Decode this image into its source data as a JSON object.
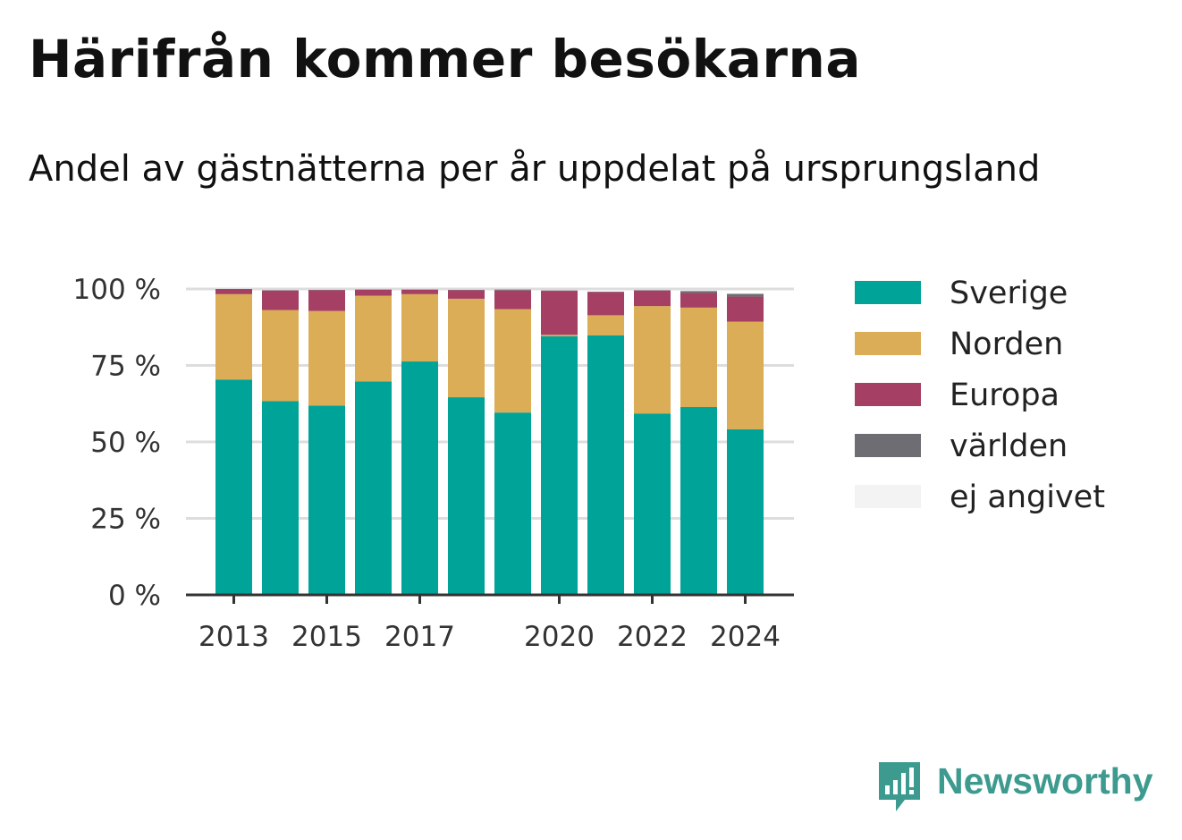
{
  "title": "Härifrån kommer besökarna",
  "subtitle": "Andel av gästnätterna per år uppdelat på ursprungsland",
  "brand": {
    "name": "Newsworthy",
    "icon": "newsworthy-logo-icon"
  },
  "chart_data": {
    "type": "bar",
    "stacked": true,
    "title": "Härifrån kommer besökarna",
    "subtitle": "Andel av gästnätterna per år uppdelat på ursprungsland",
    "xlabel": "",
    "ylabel": "",
    "categories": [
      "2013",
      "2014",
      "2015",
      "2016",
      "2017",
      "2018",
      "2019",
      "2020",
      "2021",
      "2022",
      "2023",
      "2024"
    ],
    "x_tick_labels": [
      "2013",
      "2015",
      "2017",
      "2020",
      "2022",
      "2024"
    ],
    "y_ticks": [
      0,
      25,
      50,
      75,
      100
    ],
    "y_tick_labels": [
      "0 %",
      "25 %",
      "50 %",
      "75 %",
      "100 %"
    ],
    "ylim": [
      0,
      100
    ],
    "grid": true,
    "legend_position": "right",
    "series": [
      {
        "name": "Sverige",
        "color": "#00a398",
        "values": [
          70.4,
          63.3,
          61.9,
          69.8,
          76.3,
          64.6,
          59.6,
          84.5,
          84.8,
          59.3,
          61.4,
          54.1
        ]
      },
      {
        "name": "Norden",
        "color": "#dbad57",
        "values": [
          27.9,
          29.8,
          30.9,
          28.0,
          22.0,
          32.2,
          33.8,
          0.5,
          6.6,
          35.1,
          32.5,
          35.2
        ]
      },
      {
        "name": "Europa",
        "color": "#a53f64",
        "values": [
          1.7,
          6.4,
          6.8,
          2.0,
          1.5,
          2.8,
          6.1,
          14.4,
          7.6,
          5.1,
          4.8,
          8.2
        ]
      },
      {
        "name": "världen",
        "color": "#6d6d73",
        "values": [
          0.0,
          0.1,
          0.1,
          0.0,
          0.0,
          0.1,
          0.3,
          0.1,
          0.1,
          0.1,
          0.6,
          0.9
        ]
      },
      {
        "name": "ej angivet",
        "color": "#f3f3f4",
        "values": [
          0.0,
          0.0,
          0.0,
          0.0,
          0.0,
          0.0,
          0.0,
          0.0,
          0.0,
          0.0,
          0.0,
          0.0
        ]
      }
    ]
  }
}
